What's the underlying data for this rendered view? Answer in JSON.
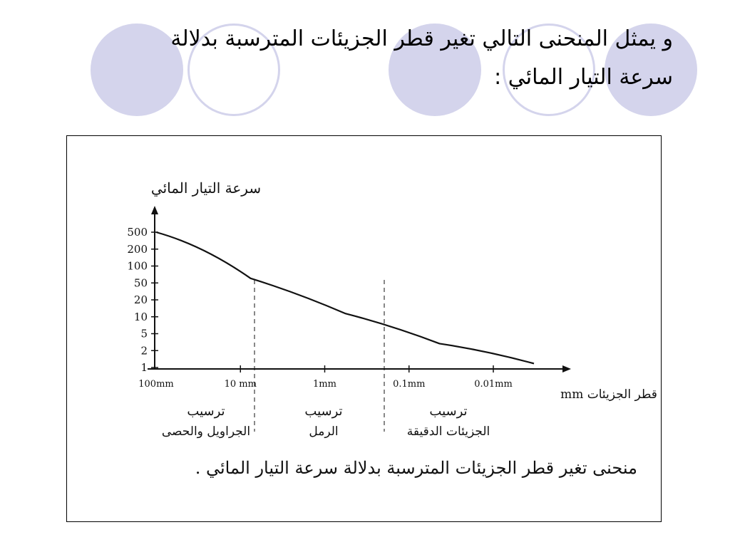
{
  "slide": {
    "title_line1": "و يمثل المنحنى التالي تغير قطر الجزيئات المترسبة بدلالة",
    "title_line2": "سرعة التيار المائي :"
  },
  "colors": {
    "decor": "#d4d4ec",
    "ink": "#111111"
  },
  "chart_data": {
    "type": "line",
    "title": "منحنى تغير قطر الجزيئات المترسبة بدلالة سرعة التيار المائي .",
    "ylabel": "سرعة التيار المائي",
    "xlabel": "قطر الجزيئات mm",
    "y_ticks": [
      "500",
      "200",
      "100",
      "50",
      "20",
      "10",
      "5",
      "2",
      "1"
    ],
    "x_ticks": [
      "100mm",
      "10 mm",
      "1mm",
      "0.1mm",
      "0.01mm"
    ],
    "zones": [
      "ترسيب الجراويل والحصى",
      "ترسيب الرمل",
      "ترسيب الجزيئات الدقيقة"
    ],
    "series": [
      {
        "x": [
          100,
          10,
          1,
          0.1,
          0.01
        ],
        "y": [
          500,
          60,
          12,
          3,
          1.2
        ]
      }
    ],
    "grid": false
  }
}
